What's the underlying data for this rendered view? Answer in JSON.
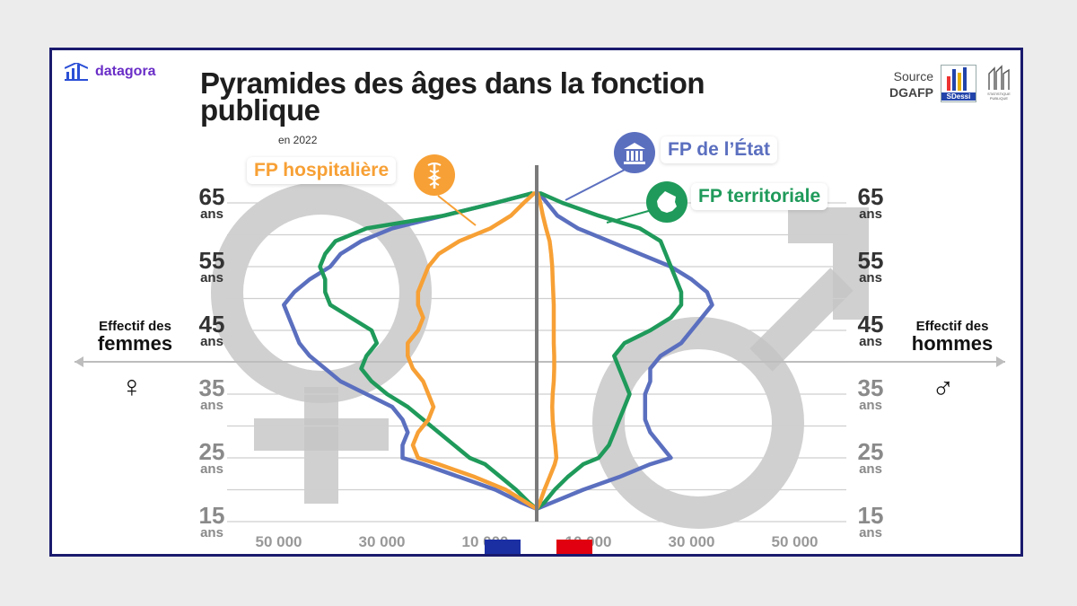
{
  "brand": {
    "name": "datagora",
    "icon": "bar-chart-icon"
  },
  "title": "Pyramides des âges dans la fonction publique",
  "subtitle": "en 2022",
  "source": {
    "label": "Source",
    "agency": "DGAFP",
    "logo_label": "SDessi",
    "logo2_label": "STATISTIQUE PUBLIQUE"
  },
  "labels": {
    "left_line1": "Effectif des",
    "left_line2": "femmes",
    "right_line1": "Effectif des",
    "right_line2": "hommes",
    "female_symbol": "♀",
    "male_symbol": "♂"
  },
  "colors": {
    "etat": "#5b6fbf",
    "territoriale": "#1f9a5a",
    "hospitaliere": "#f7a035",
    "axis": "#7a7a7a",
    "symbol": "#c4c4c4",
    "grid": "#cfcfcf",
    "flag_blue": "#1b2fa3",
    "flag_red": "#e1000f"
  },
  "callouts": {
    "etat": {
      "label": "FP de l’État",
      "icon": "building-icon"
    },
    "territoriale": {
      "label": "FP territoriale",
      "icon": "france-map-icon"
    },
    "hospitaliere": {
      "label": "FP hospitalière",
      "icon": "caduceus-icon"
    }
  },
  "chart_data": {
    "type": "line",
    "title": "Pyramides des âges dans la fonction publique",
    "subtitle": "en 2022",
    "y_ticks": [
      {
        "value": 15,
        "label": "15",
        "unit": "ans"
      },
      {
        "value": 25,
        "label": "25",
        "unit": "ans"
      },
      {
        "value": 35,
        "label": "35",
        "unit": "ans"
      },
      {
        "value": 45,
        "label": "45",
        "unit": "ans"
      },
      {
        "value": 55,
        "label": "55",
        "unit": "ans"
      },
      {
        "value": 65,
        "label": "65",
        "unit": "ans"
      }
    ],
    "x_ticks": [
      {
        "value": -50000,
        "label": "50 000"
      },
      {
        "value": -30000,
        "label": "30 000"
      },
      {
        "value": -10000,
        "label": "10 000"
      },
      {
        "value": 10000,
        "label": "10 000"
      },
      {
        "value": 30000,
        "label": "30 000"
      },
      {
        "value": 50000,
        "label": "50 000"
      }
    ],
    "xlim": [
      -52000,
      52000
    ],
    "ylim": [
      15,
      67
    ],
    "age_axis": [
      17,
      18,
      20,
      22,
      24,
      25,
      27,
      29,
      31,
      33,
      35,
      37,
      39,
      41,
      43,
      45,
      47,
      49,
      51,
      53,
      55,
      57,
      59,
      61,
      63,
      65,
      66.5
    ],
    "series": [
      {
        "name": "FP de l’État",
        "key": "etat",
        "women": [
          0,
          3000,
          8000,
          15000,
          22000,
          26000,
          26000,
          25000,
          26000,
          28000,
          33000,
          38000,
          41000,
          44000,
          46000,
          47000,
          48000,
          49000,
          47000,
          44000,
          40000,
          38000,
          34000,
          28000,
          18000,
          8000,
          1000
        ],
        "men": [
          0,
          3000,
          9000,
          16000,
          22000,
          26000,
          24000,
          22000,
          21000,
          21000,
          21000,
          22000,
          22000,
          24000,
          28000,
          30000,
          32000,
          34000,
          33000,
          30000,
          26000,
          20000,
          14000,
          8000,
          4000,
          2000,
          500
        ]
      },
      {
        "name": "FP territoriale",
        "key": "territoriale",
        "women": [
          0,
          1500,
          4000,
          7000,
          10000,
          13000,
          16000,
          19000,
          22000,
          25000,
          29000,
          32000,
          34000,
          33000,
          31000,
          32000,
          36000,
          40000,
          41000,
          41000,
          42000,
          41000,
          39000,
          33000,
          18000,
          8000,
          1000
        ],
        "men": [
          0,
          1500,
          3500,
          6000,
          9000,
          12000,
          14000,
          15000,
          16000,
          17000,
          18000,
          17000,
          16000,
          15000,
          17000,
          22000,
          26000,
          28000,
          28000,
          27000,
          26000,
          25000,
          24000,
          20000,
          12000,
          5000,
          800
        ]
      },
      {
        "name": "FP hospitalière",
        "key": "hospitaliere",
        "women": [
          0,
          2000,
          6000,
          12000,
          19000,
          23000,
          24000,
          23000,
          21000,
          20000,
          21000,
          22000,
          24000,
          25000,
          25000,
          23000,
          22000,
          23000,
          23000,
          22000,
          21000,
          19000,
          15000,
          9000,
          5000,
          2500,
          500
        ],
        "men": [
          0,
          600,
          1500,
          2500,
          3500,
          3800,
          3600,
          3300,
          3100,
          3000,
          3100,
          3300,
          3400,
          3400,
          3300,
          3300,
          3300,
          3300,
          3200,
          3100,
          3000,
          2800,
          2500,
          1800,
          1200,
          700,
          200
        ]
      }
    ]
  }
}
